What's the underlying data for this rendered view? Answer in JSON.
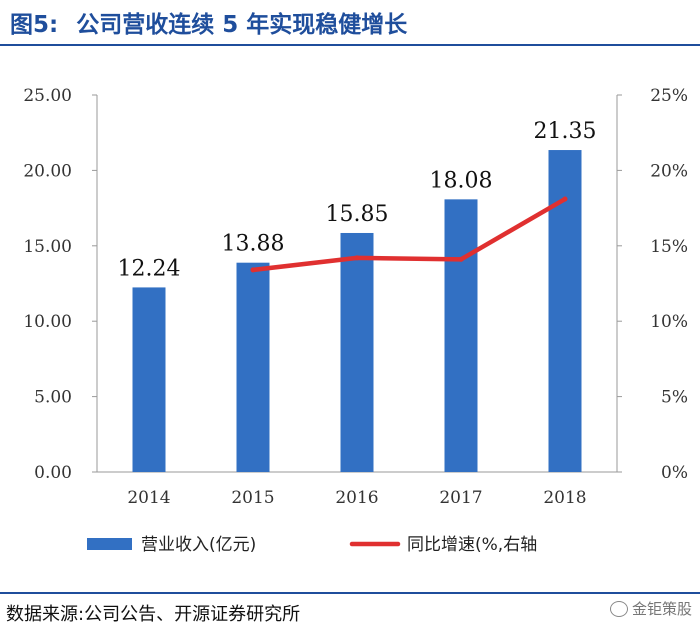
{
  "figure": {
    "label": "图5:",
    "title": "公司营收连续 5 年实现稳健增长"
  },
  "source": "数据来源:公司公告、开源证券研究所",
  "watermark": {
    "text": "金钜策股",
    "icon": "wechat-icon"
  },
  "colors": {
    "bar": "#3270c3",
    "line": "#e03030",
    "title": "#1f4e9c"
  },
  "chart_data": {
    "type": "bar",
    "categories": [
      "2014",
      "2015",
      "2016",
      "2017",
      "2018"
    ],
    "series": [
      {
        "name": "营业收入(亿元)",
        "type": "bar",
        "axis": "left",
        "values": [
          12.24,
          13.88,
          15.85,
          18.08,
          21.35
        ],
        "labels": [
          "12.24",
          "13.88",
          "15.85",
          "18.08",
          "21.35"
        ]
      },
      {
        "name": "同比增速(%,右轴",
        "type": "line",
        "axis": "right",
        "values": [
          null,
          13.4,
          14.2,
          14.1,
          18.1
        ]
      }
    ],
    "y_left": {
      "min": 0,
      "max": 25,
      "ticks": [
        "0.00",
        "5.00",
        "10.00",
        "15.00",
        "20.00",
        "25.00"
      ]
    },
    "y_right": {
      "min": 0,
      "max": 25,
      "ticks": [
        "0%",
        "5%",
        "10%",
        "15%",
        "20%",
        "25%"
      ]
    },
    "grid": false,
    "legend": "bottom"
  }
}
